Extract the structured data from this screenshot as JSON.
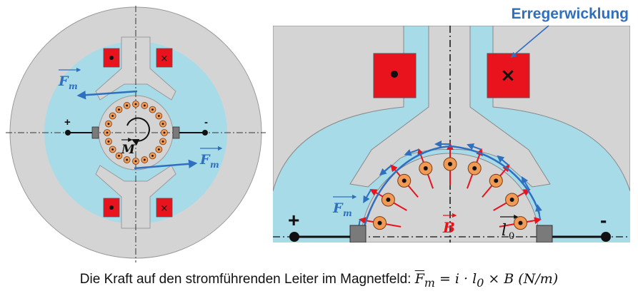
{
  "labels": {
    "winding_title": "Erregerwicklung",
    "force_symbol": "F",
    "force_sub": "m",
    "torque_symbol": "M",
    "field_symbol": "B",
    "length_symbol": "l",
    "length_sub": "0",
    "plus": "+",
    "minus": "-",
    "dot_mark": "•",
    "cross_mark": "×"
  },
  "caption": {
    "text": "Die Kraft auf den stromführenden Leiter im Magnetfeld:",
    "formula_lhs": "F",
    "formula_lhs_sub": "m",
    "formula_rhs": "= i · l",
    "formula_rhs_sub": "0",
    "formula_tail": "× B",
    "unit_num": "N",
    "unit_den": "m"
  },
  "colors": {
    "stator": "#d4d4d4",
    "air": "#a8dbe8",
    "coil": "#e8131c",
    "conductor": "#f09a55",
    "arrow_blue": "#2f6fbf",
    "arrow_red": "#e8131c",
    "title_blue": "#2f6fbf"
  }
}
